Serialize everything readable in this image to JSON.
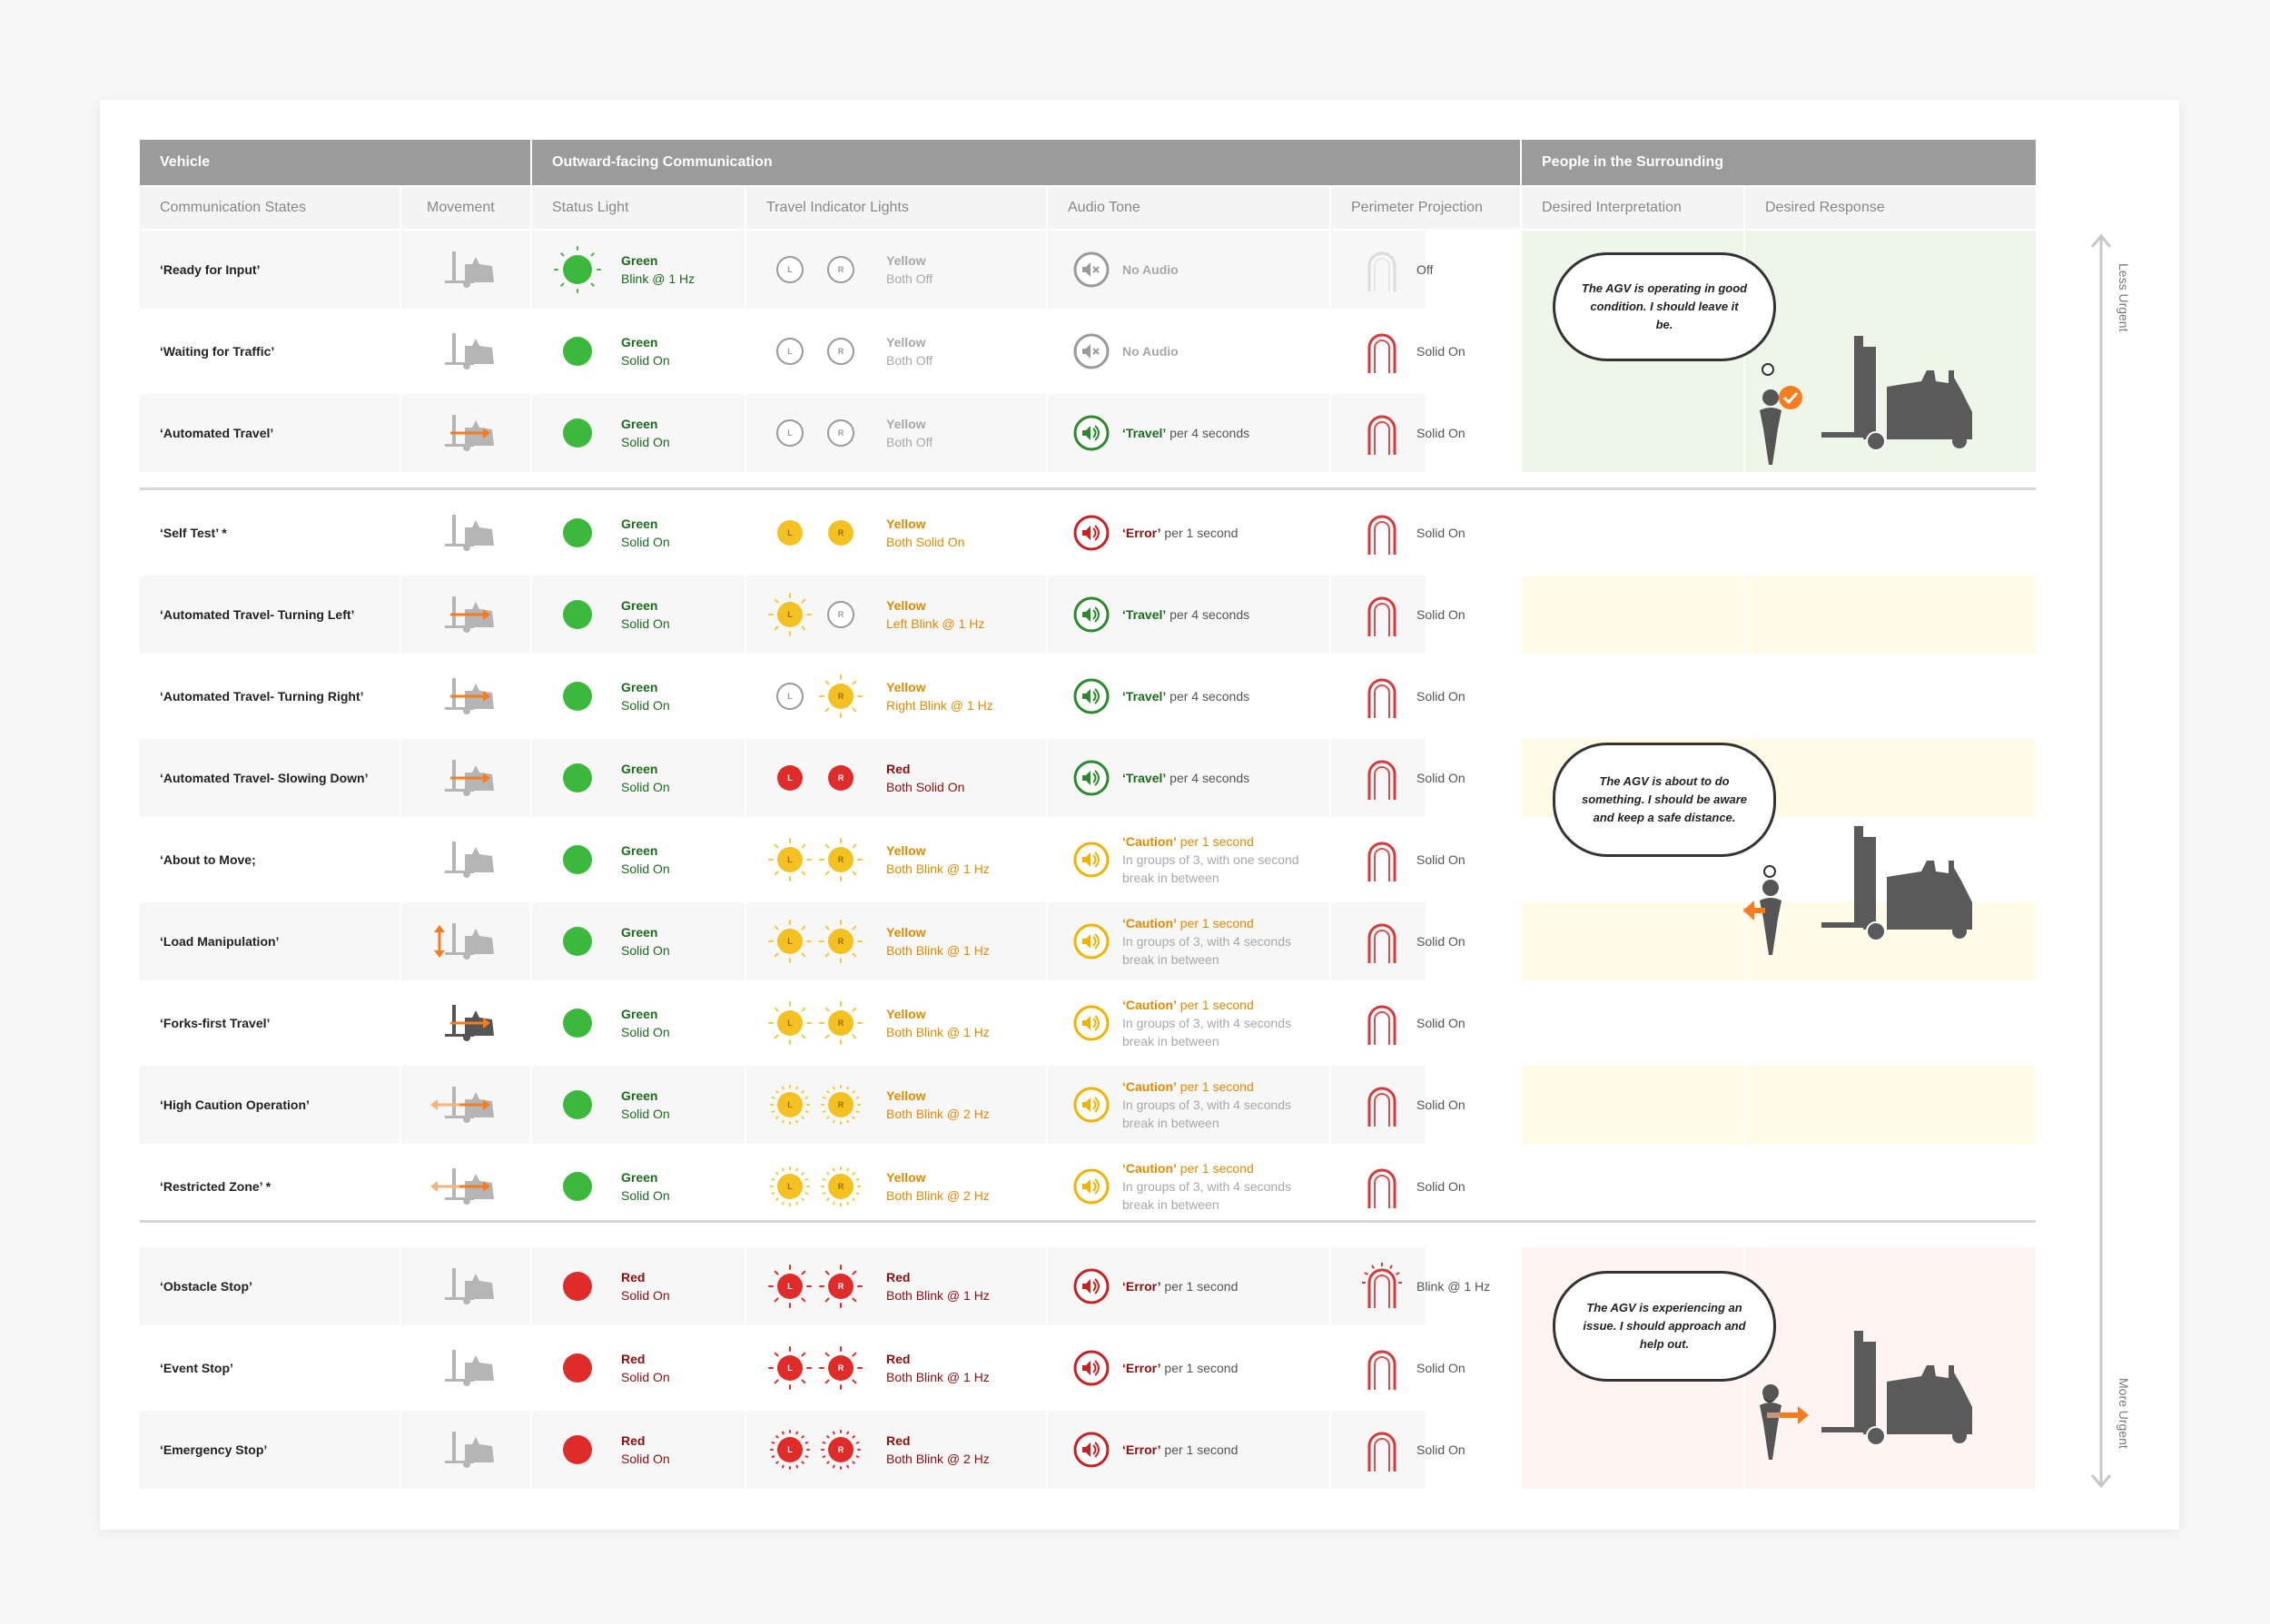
{
  "groups": {
    "vehicle": "Vehicle",
    "outward": "Outward-facing Communication",
    "people": "People in the Surrounding"
  },
  "columns": [
    "Communication States",
    "Movement",
    "Status Light",
    "Travel Indicator Lights",
    "Audio Tone",
    "Perimeter Projection",
    "Desired Interpretation",
    "Desired Response"
  ],
  "rows": [
    {
      "state": "‘Ready for Input’",
      "move": "idle",
      "status_color": "green",
      "status_blink": true,
      "status_t1": "Green",
      "status_t2": "Blink @ 1 Hz",
      "ind": [
        "off",
        "off"
      ],
      "ind_t1": "Yellow",
      "ind_t2": "Both Off",
      "ind_cls": "grey",
      "audio": "none",
      "audio_t1": "No Audio",
      "audio_t2": "",
      "audio_t3": "",
      "proj": "off",
      "proj_t": "Off"
    },
    {
      "state": "‘Waiting for Traffic’",
      "move": "idle",
      "status_color": "green",
      "status_blink": false,
      "status_t1": "Green",
      "status_t2": "Solid On",
      "ind": [
        "off",
        "off"
      ],
      "ind_t1": "Yellow",
      "ind_t2": "Both Off",
      "ind_cls": "grey",
      "audio": "none",
      "audio_t1": "No Audio",
      "audio_t2": "",
      "audio_t3": "",
      "proj": "solid",
      "proj_t": "Solid On"
    },
    {
      "state": "‘Automated Travel’",
      "move": "right",
      "status_color": "green",
      "status_blink": false,
      "status_t1": "Green",
      "status_t2": "Solid On",
      "ind": [
        "off",
        "off"
      ],
      "ind_t1": "Yellow",
      "ind_t2": "Both Off",
      "ind_cls": "grey",
      "audio": "green",
      "audio_t1": "‘Travel’",
      "audio_t2": " per 4 seconds",
      "audio_t3": "",
      "proj": "solid",
      "proj_t": "Solid On"
    },
    {
      "state": "‘Self Test’ *",
      "move": "idle",
      "status_color": "green",
      "status_blink": false,
      "status_t1": "Green",
      "status_t2": "Solid On",
      "ind": [
        "yon",
        "yon"
      ],
      "ind_t1": "Yellow",
      "ind_t2": "Both Solid On",
      "ind_cls": "yellow",
      "audio": "red",
      "audio_t1": "‘Error’",
      "audio_t2": " per 1 second",
      "audio_t3": "",
      "proj": "solid",
      "proj_t": "Solid On"
    },
    {
      "state": "‘Automated Travel- Turning Left’",
      "move": "right",
      "status_color": "green",
      "status_blink": false,
      "status_t1": "Green",
      "status_t2": "Solid On",
      "ind": [
        "yblink",
        "off"
      ],
      "ind_t1": "Yellow",
      "ind_t2": "Left Blink @ 1 Hz",
      "ind_cls": "yellow",
      "audio": "green",
      "audio_t1": "‘Travel’",
      "audio_t2": " per 4 seconds",
      "audio_t3": "",
      "proj": "solid",
      "proj_t": "Solid On"
    },
    {
      "state": "‘Automated Travel- Turning Right’",
      "move": "right",
      "status_color": "green",
      "status_blink": false,
      "status_t1": "Green",
      "status_t2": "Solid On",
      "ind": [
        "off",
        "yblink"
      ],
      "ind_t1": "Yellow",
      "ind_t2": "Right Blink @ 1 Hz",
      "ind_cls": "yellow",
      "audio": "green",
      "audio_t1": "‘Travel’",
      "audio_t2": " per 4 seconds",
      "audio_t3": "",
      "proj": "solid",
      "proj_t": "Solid On"
    },
    {
      "state": "‘Automated Travel- Slowing Down’",
      "move": "right",
      "status_color": "green",
      "status_blink": false,
      "status_t1": "Green",
      "status_t2": "Solid On",
      "ind": [
        "ron",
        "ron"
      ],
      "ind_t1": "Red",
      "ind_t2": "Both Solid On",
      "ind_cls": "red",
      "audio": "green",
      "audio_t1": "‘Travel’",
      "audio_t2": " per 4 seconds",
      "audio_t3": "",
      "proj": "solid",
      "proj_t": "Solid On"
    },
    {
      "state": "‘About to Move;",
      "move": "idle",
      "status_color": "green",
      "status_blink": false,
      "status_t1": "Green",
      "status_t2": "Solid On",
      "ind": [
        "yblink",
        "yblink"
      ],
      "ind_t1": "Yellow",
      "ind_t2": "Both Blink @ 1 Hz",
      "ind_cls": "yellow",
      "audio": "yellow",
      "audio_t1": "‘Caution’",
      "audio_t2": " per 1 second",
      "audio_t3": "In groups of 3, with one second break in between",
      "proj": "solid",
      "proj_t": "Solid On"
    },
    {
      "state": "‘Load Manipulation’",
      "move": "up",
      "status_color": "green",
      "status_blink": false,
      "status_t1": "Green",
      "status_t2": "Solid On",
      "ind": [
        "yblink",
        "yblink"
      ],
      "ind_t1": "Yellow",
      "ind_t2": "Both Blink @ 1 Hz",
      "ind_cls": "yellow",
      "audio": "yellow",
      "audio_t1": "‘Caution’",
      "audio_t2": " per 1 second",
      "audio_t3": "In groups of 3, with 4 seconds break in between",
      "proj": "solid",
      "proj_t": "Solid On"
    },
    {
      "state": "‘Forks-first Travel’",
      "move": "forks",
      "status_color": "green",
      "status_blink": false,
      "status_t1": "Green",
      "status_t2": "Solid On",
      "ind": [
        "yblink",
        "yblink"
      ],
      "ind_t1": "Yellow",
      "ind_t2": "Both Blink @ 1 Hz",
      "ind_cls": "yellow",
      "audio": "yellow",
      "audio_t1": "‘Caution’",
      "audio_t2": " per 1 second",
      "audio_t3": "In groups of 3, with 4 seconds break in between",
      "proj": "solid",
      "proj_t": "Solid On"
    },
    {
      "state": "‘High Caution Operation’",
      "move": "both",
      "status_color": "green",
      "status_blink": false,
      "status_t1": "Green",
      "status_t2": "Solid On",
      "ind": [
        "yblink2",
        "yblink2"
      ],
      "ind_t1": "Yellow",
      "ind_t2": "Both Blink @ 2 Hz",
      "ind_cls": "yellow",
      "audio": "yellow",
      "audio_t1": "‘Caution’",
      "audio_t2": " per 1 second",
      "audio_t3": "In groups of 3, with 4 seconds break in between",
      "proj": "solid",
      "proj_t": "Solid On"
    },
    {
      "state": "‘Restricted Zone’ *",
      "move": "both",
      "status_color": "green",
      "status_blink": false,
      "status_t1": "Green",
      "status_t2": "Solid On",
      "ind": [
        "yblink2",
        "yblink2"
      ],
      "ind_t1": "Yellow",
      "ind_t2": "Both Blink @ 2 Hz",
      "ind_cls": "yellow",
      "audio": "yellow",
      "audio_t1": "‘Caution’",
      "audio_t2": " per 1 second",
      "audio_t3": "In groups of 3, with 4 seconds break in between",
      "proj": "solid",
      "proj_t": "Solid On"
    },
    {
      "state": "‘Obstacle Stop’",
      "move": "idle",
      "status_color": "red",
      "status_blink": false,
      "status_t1": "Red",
      "status_t2": "Solid On",
      "ind": [
        "rblink",
        "rblink"
      ],
      "ind_t1": "Red",
      "ind_t2": "Both Blink @ 1 Hz",
      "ind_cls": "red",
      "audio": "red",
      "audio_t1": "‘Error’",
      "audio_t2": " per 1 second",
      "audio_t3": "",
      "proj": "blink",
      "proj_t": "Blink @ 1 Hz"
    },
    {
      "state": "‘Event Stop’",
      "move": "idle",
      "status_color": "red",
      "status_blink": false,
      "status_t1": "Red",
      "status_t2": "Solid On",
      "ind": [
        "rblink",
        "rblink"
      ],
      "ind_t1": "Red",
      "ind_t2": "Both Blink @ 1 Hz",
      "ind_cls": "red",
      "audio": "red",
      "audio_t1": "‘Error’",
      "audio_t2": " per 1 second",
      "audio_t3": "",
      "proj": "solid",
      "proj_t": "Solid On"
    },
    {
      "state": "‘Emergency Stop’",
      "move": "idle",
      "status_color": "red",
      "status_blink": false,
      "status_t1": "Red",
      "status_t2": "Solid On",
      "ind": [
        "rblink2",
        "rblink2"
      ],
      "ind_t1": "Red",
      "ind_t2": "Both Blink @ 2 Hz",
      "ind_cls": "red",
      "audio": "red",
      "audio_t1": "‘Error’",
      "audio_t2": " per 1 second",
      "audio_t3": "",
      "proj": "solid",
      "proj_t": "Solid On"
    }
  ],
  "indicator_letters": [
    "L",
    "R"
  ],
  "zones": [
    {
      "tint": "#eef6ea",
      "text": "The AGV is operating in good condition. I should leave it be.",
      "response": "check"
    },
    {
      "tint": "#fffbe6",
      "text": "The AGV is about to do something. I should be aware and keep a safe distance.",
      "response": "away"
    },
    {
      "tint": "#fff4f2",
      "text": "The AGV is experiencing an issue. I should approach and help out.",
      "response": "toward"
    }
  ],
  "urgency": {
    "top": "Less Urgent",
    "bottom": "More Urgent"
  },
  "colors": {
    "green": "#3cb93c",
    "yellow": "#f3c222",
    "red": "#e02b2b",
    "orange": "#f57c1f",
    "proj": "#d43a3a"
  }
}
